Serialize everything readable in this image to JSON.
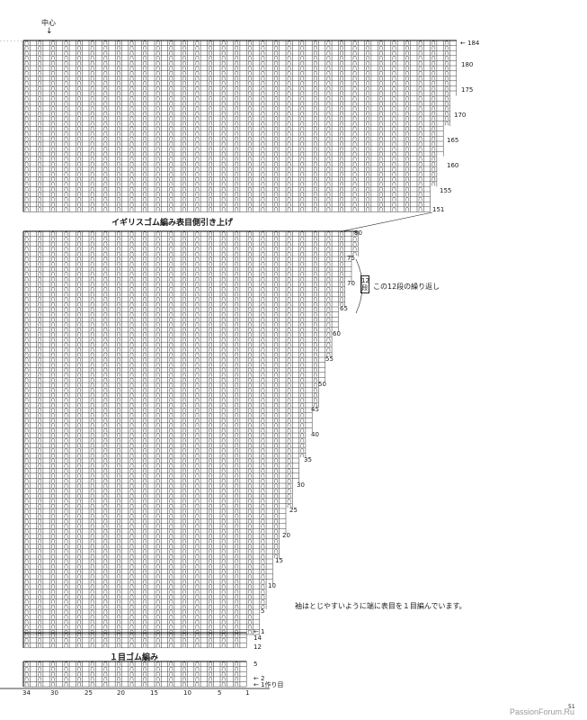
{
  "center_label": "中心",
  "top_section": {
    "caption": "イギリスゴム編み表目側引き上げ",
    "row_labels": [
      "184",
      "180",
      "175",
      "170",
      "165",
      "160",
      "155",
      "151"
    ]
  },
  "middle_section": {
    "row_labels": [
      "80",
      "75",
      "70",
      "65",
      "60",
      "55",
      "50",
      "45",
      "40",
      "35",
      "30",
      "25",
      "20",
      "15",
      "10",
      "5",
      "1",
      "14",
      "12"
    ],
    "repeat_box": "12段",
    "repeat_note": "この12段の繰り返し"
  },
  "side_note": "袖はとじやすいように端に表目を１目編んでいます。",
  "bottom_section": {
    "caption": "１目ゴム編み",
    "row_labels": [
      "5",
      "2",
      "1作り目"
    ]
  },
  "stitch_numbers": [
    "34",
    "30",
    "25",
    "20",
    "15",
    "10",
    "5",
    "1"
  ],
  "page_number": "51",
  "watermark": "PassionForum.Ru",
  "icons": {
    "center_arrow": "down-arrow-icon",
    "row_pointer": "left-arrow-icon"
  }
}
